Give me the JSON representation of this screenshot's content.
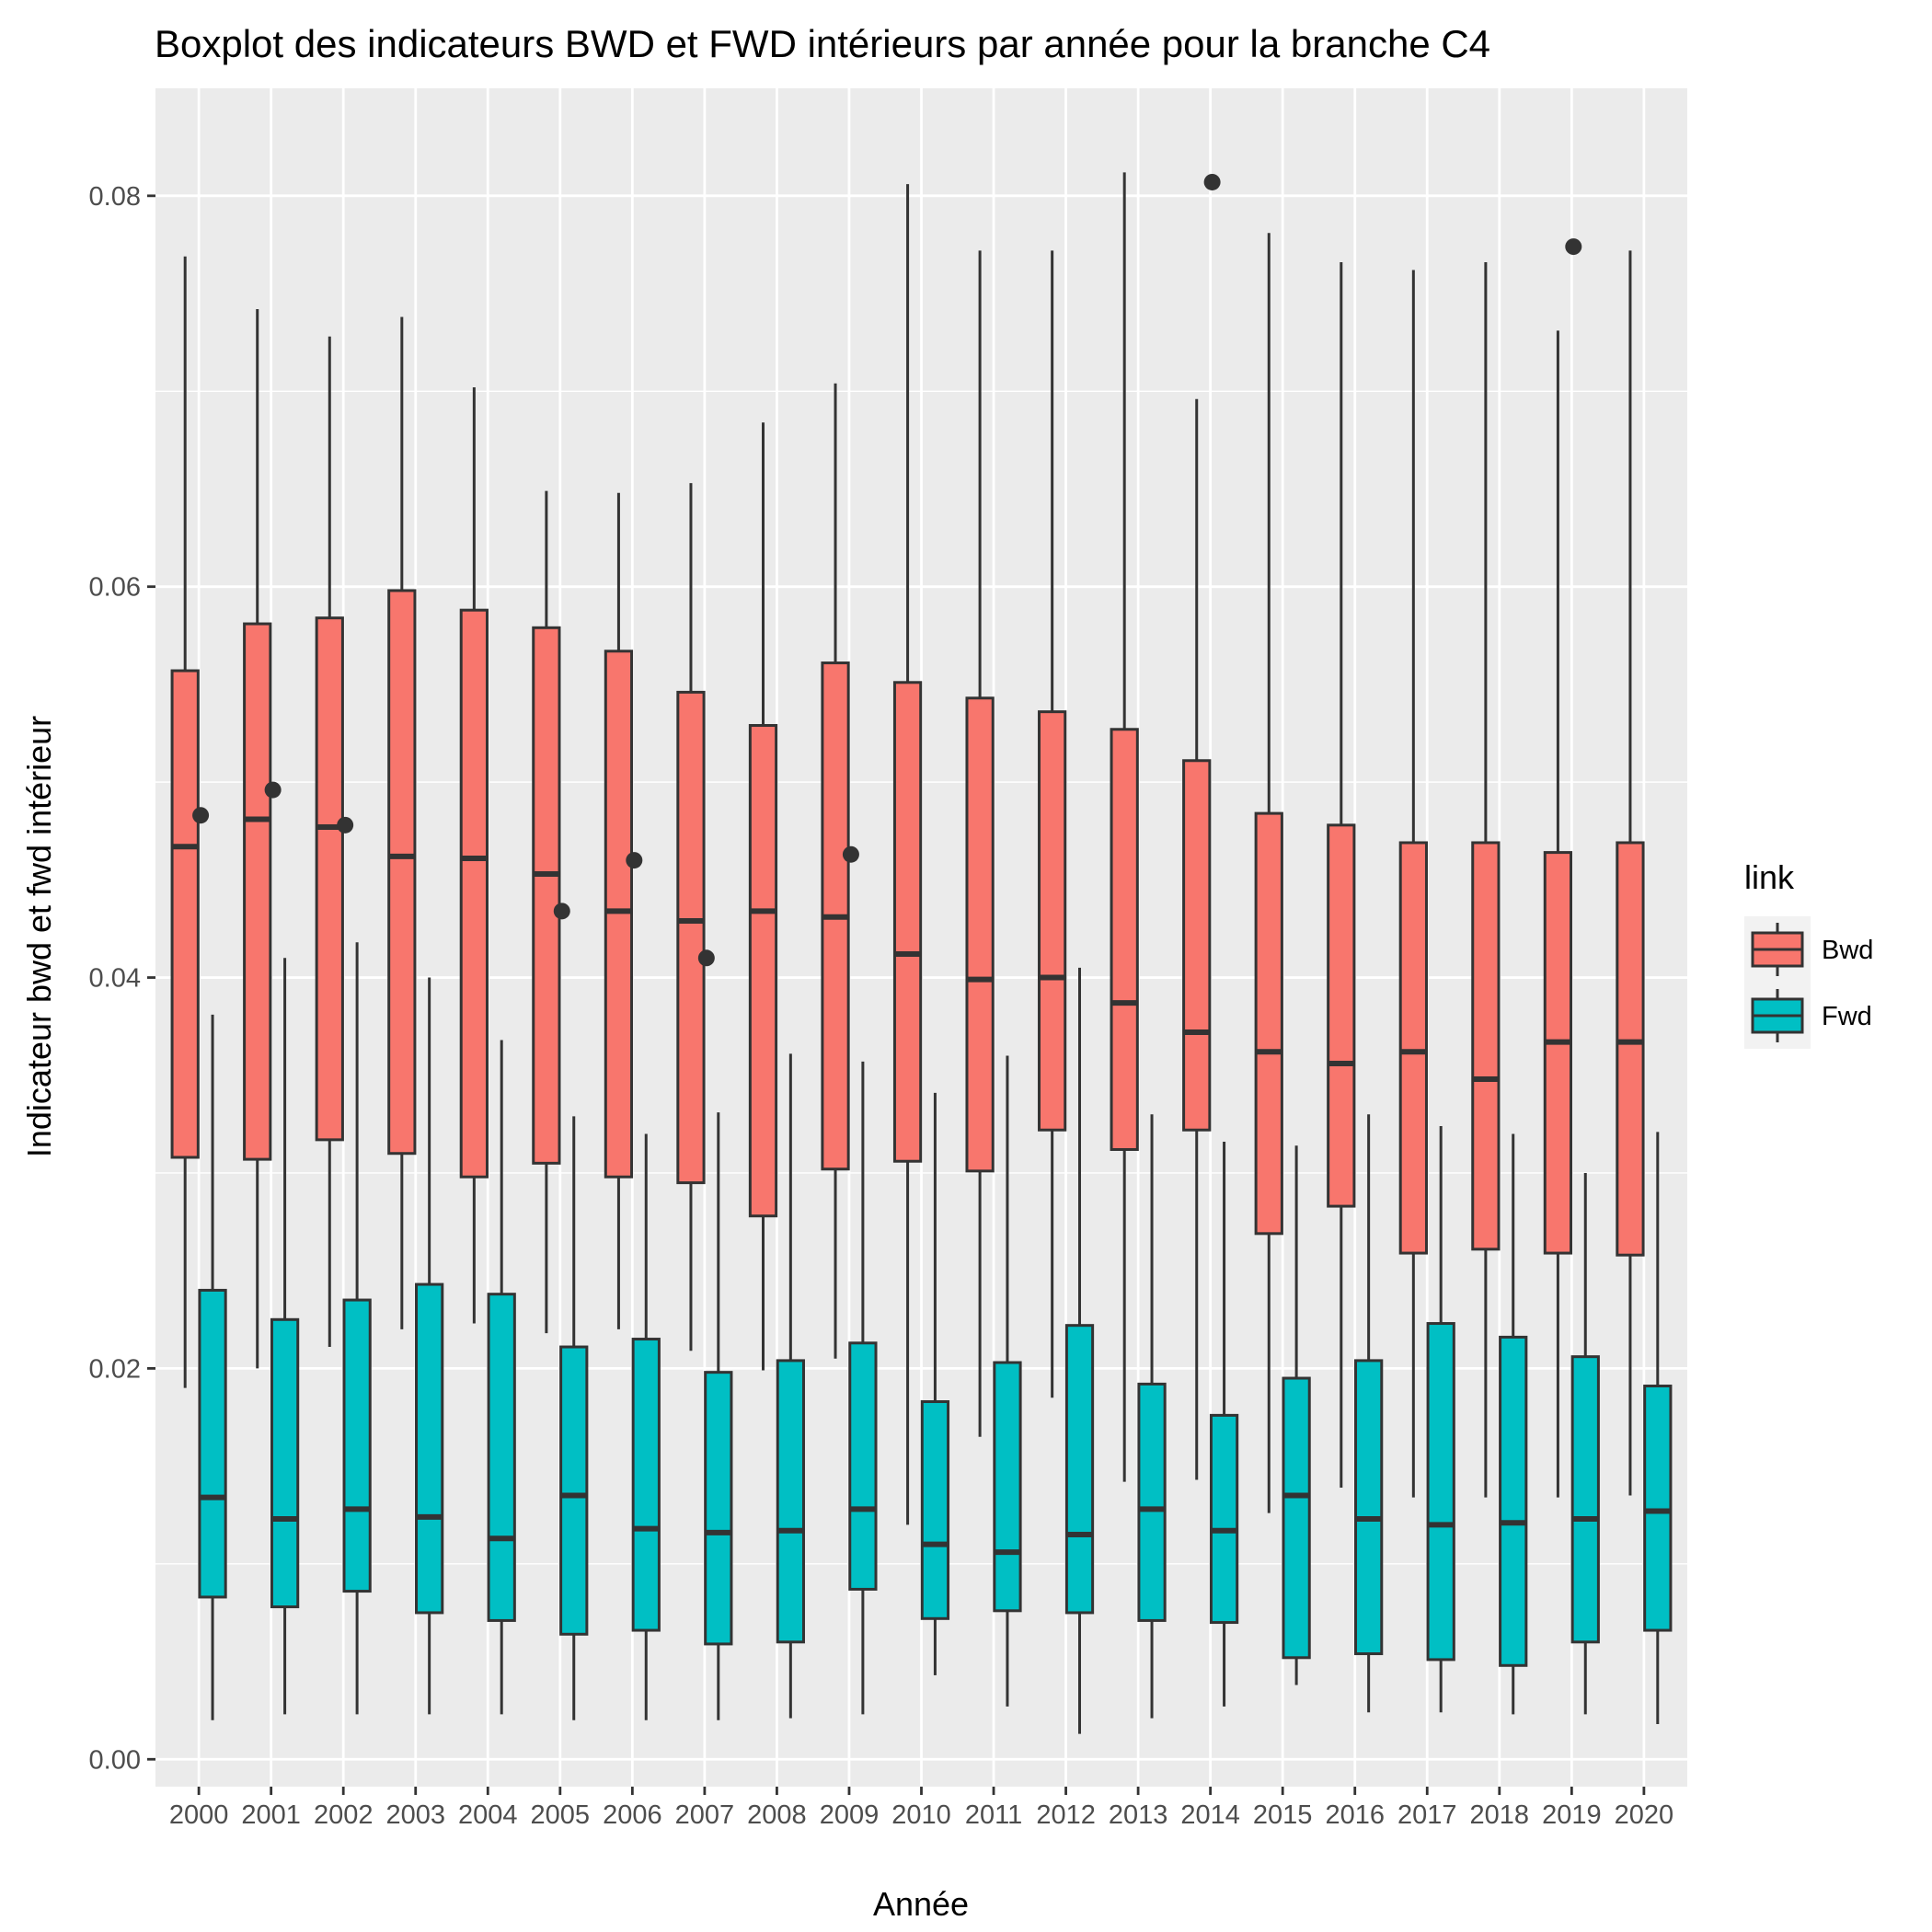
{
  "chart_data": {
    "type": "boxplot",
    "title": "Boxplot des indicateurs BWD et FWD intérieurs par année pour la branche C4",
    "xlabel": "Année",
    "ylabel": "Indicateur bwd et fwd intérieur",
    "ylim": [
      -0.0014,
      0.0855
    ],
    "y_ticks": [
      0.0,
      0.02,
      0.04,
      0.06,
      0.08
    ],
    "y_tick_labels": [
      "0.00",
      "0.02",
      "0.04",
      "0.06",
      "0.08"
    ],
    "categories": [
      "2000",
      "2001",
      "2002",
      "2003",
      "2004",
      "2005",
      "2006",
      "2007",
      "2008",
      "2009",
      "2010",
      "2011",
      "2012",
      "2013",
      "2014",
      "2015",
      "2016",
      "2017",
      "2018",
      "2019",
      "2020"
    ],
    "grid": true,
    "legend": {
      "title": "link",
      "position": "right"
    },
    "series": [
      {
        "name": "Bwd",
        "color": "#F8766D",
        "boxes": [
          {
            "min": 0.019,
            "q1": 0.0308,
            "median": 0.0467,
            "q3": 0.0557,
            "max": 0.0769,
            "outliers": [
              0.0483
            ]
          },
          {
            "min": 0.02,
            "q1": 0.0307,
            "median": 0.0481,
            "q3": 0.0581,
            "max": 0.0742,
            "outliers": [
              0.0496
            ]
          },
          {
            "min": 0.0211,
            "q1": 0.0317,
            "median": 0.0477,
            "q3": 0.0584,
            "max": 0.0728,
            "outliers": [
              0.0478
            ]
          },
          {
            "min": 0.022,
            "q1": 0.031,
            "median": 0.0462,
            "q3": 0.0598,
            "max": 0.0738,
            "outliers": []
          },
          {
            "min": 0.0223,
            "q1": 0.0298,
            "median": 0.0461,
            "q3": 0.0588,
            "max": 0.0702,
            "outliers": []
          },
          {
            "min": 0.0218,
            "q1": 0.0305,
            "median": 0.0453,
            "q3": 0.0579,
            "max": 0.0649,
            "outliers": [
              0.0434
            ]
          },
          {
            "min": 0.022,
            "q1": 0.0298,
            "median": 0.0434,
            "q3": 0.0567,
            "max": 0.0648,
            "outliers": [
              0.046
            ]
          },
          {
            "min": 0.0209,
            "q1": 0.0295,
            "median": 0.0429,
            "q3": 0.0546,
            "max": 0.0653,
            "outliers": [
              0.041
            ]
          },
          {
            "min": 0.0199,
            "q1": 0.0278,
            "median": 0.0434,
            "q3": 0.0529,
            "max": 0.0684,
            "outliers": []
          },
          {
            "min": 0.0205,
            "q1": 0.0302,
            "median": 0.0431,
            "q3": 0.0561,
            "max": 0.0704,
            "outliers": [
              0.0463
            ]
          },
          {
            "min": 0.012,
            "q1": 0.0306,
            "median": 0.0412,
            "q3": 0.0551,
            "max": 0.0806,
            "outliers": []
          },
          {
            "min": 0.0165,
            "q1": 0.0301,
            "median": 0.0399,
            "q3": 0.0543,
            "max": 0.0772,
            "outliers": []
          },
          {
            "min": 0.0185,
            "q1": 0.0322,
            "median": 0.04,
            "q3": 0.0536,
            "max": 0.0772,
            "outliers": []
          },
          {
            "min": 0.0142,
            "q1": 0.0312,
            "median": 0.0387,
            "q3": 0.0527,
            "max": 0.0812,
            "outliers": []
          },
          {
            "min": 0.0143,
            "q1": 0.0322,
            "median": 0.0372,
            "q3": 0.0511,
            "max": 0.0696,
            "outliers": [
              0.0807
            ]
          },
          {
            "min": 0.0126,
            "q1": 0.0269,
            "median": 0.0362,
            "q3": 0.0484,
            "max": 0.0781,
            "outliers": []
          },
          {
            "min": 0.0139,
            "q1": 0.0283,
            "median": 0.0356,
            "q3": 0.0478,
            "max": 0.0766,
            "outliers": []
          },
          {
            "min": 0.0134,
            "q1": 0.0259,
            "median": 0.0362,
            "q3": 0.0469,
            "max": 0.0762,
            "outliers": []
          },
          {
            "min": 0.0134,
            "q1": 0.0261,
            "median": 0.0348,
            "q3": 0.0469,
            "max": 0.0766,
            "outliers": []
          },
          {
            "min": 0.0134,
            "q1": 0.0259,
            "median": 0.0367,
            "q3": 0.0464,
            "max": 0.0731,
            "outliers": [
              0.0774
            ]
          },
          {
            "min": 0.0135,
            "q1": 0.0258,
            "median": 0.0367,
            "q3": 0.0469,
            "max": 0.0772,
            "outliers": []
          }
        ]
      },
      {
        "name": "Fwd",
        "color": "#00BFC4",
        "boxes": [
          {
            "min": 0.002,
            "q1": 0.0083,
            "median": 0.0134,
            "q3": 0.024,
            "max": 0.0381,
            "outliers": []
          },
          {
            "min": 0.0023,
            "q1": 0.0078,
            "median": 0.0123,
            "q3": 0.0225,
            "max": 0.041,
            "outliers": []
          },
          {
            "min": 0.0023,
            "q1": 0.0086,
            "median": 0.0128,
            "q3": 0.0235,
            "max": 0.0418,
            "outliers": []
          },
          {
            "min": 0.0023,
            "q1": 0.0075,
            "median": 0.0124,
            "q3": 0.0243,
            "max": 0.04,
            "outliers": []
          },
          {
            "min": 0.0023,
            "q1": 0.0071,
            "median": 0.0113,
            "q3": 0.0238,
            "max": 0.0368,
            "outliers": []
          },
          {
            "min": 0.002,
            "q1": 0.0064,
            "median": 0.0135,
            "q3": 0.0211,
            "max": 0.0329,
            "outliers": []
          },
          {
            "min": 0.002,
            "q1": 0.0066,
            "median": 0.0118,
            "q3": 0.0215,
            "max": 0.032,
            "outliers": []
          },
          {
            "min": 0.002,
            "q1": 0.0059,
            "median": 0.0116,
            "q3": 0.0198,
            "max": 0.0331,
            "outliers": []
          },
          {
            "min": 0.0021,
            "q1": 0.006,
            "median": 0.0117,
            "q3": 0.0204,
            "max": 0.0361,
            "outliers": []
          },
          {
            "min": 0.0023,
            "q1": 0.0087,
            "median": 0.0128,
            "q3": 0.0213,
            "max": 0.0357,
            "outliers": []
          },
          {
            "min": 0.0043,
            "q1": 0.0072,
            "median": 0.011,
            "q3": 0.0183,
            "max": 0.0341,
            "outliers": []
          },
          {
            "min": 0.0027,
            "q1": 0.0076,
            "median": 0.0106,
            "q3": 0.0203,
            "max": 0.036,
            "outliers": []
          },
          {
            "min": 0.0013,
            "q1": 0.0075,
            "median": 0.0115,
            "q3": 0.0222,
            "max": 0.0405,
            "outliers": []
          },
          {
            "min": 0.0021,
            "q1": 0.0071,
            "median": 0.0128,
            "q3": 0.0192,
            "max": 0.033,
            "outliers": []
          },
          {
            "min": 0.0027,
            "q1": 0.007,
            "median": 0.0117,
            "q3": 0.0176,
            "max": 0.0316,
            "outliers": []
          },
          {
            "min": 0.0038,
            "q1": 0.0052,
            "median": 0.0135,
            "q3": 0.0195,
            "max": 0.0314,
            "outliers": []
          },
          {
            "min": 0.0024,
            "q1": 0.0054,
            "median": 0.0123,
            "q3": 0.0204,
            "max": 0.033,
            "outliers": []
          },
          {
            "min": 0.0024,
            "q1": 0.0051,
            "median": 0.012,
            "q3": 0.0223,
            "max": 0.0324,
            "outliers": []
          },
          {
            "min": 0.0023,
            "q1": 0.0048,
            "median": 0.0121,
            "q3": 0.0216,
            "max": 0.032,
            "outliers": []
          },
          {
            "min": 0.0023,
            "q1": 0.006,
            "median": 0.0123,
            "q3": 0.0206,
            "max": 0.03,
            "outliers": []
          },
          {
            "min": 0.0018,
            "q1": 0.0066,
            "median": 0.0127,
            "q3": 0.0191,
            "max": 0.0321,
            "outliers": []
          }
        ]
      }
    ]
  }
}
